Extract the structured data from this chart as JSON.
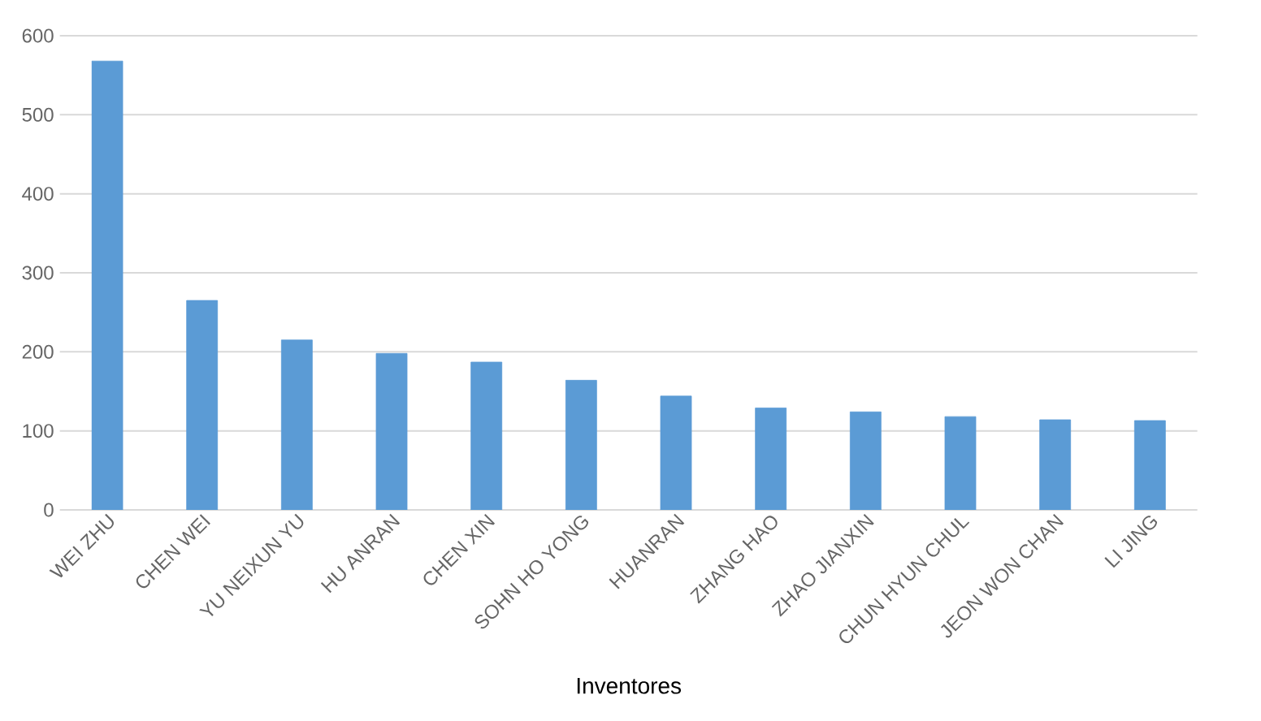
{
  "chart_data": {
    "type": "bar",
    "xlabel": "Inventores",
    "categories": [
      "WEI ZHU",
      "CHEN WEI",
      "YU NEIXUN YU",
      "HU ANRAN",
      "CHEN XIN",
      "SOHN HO YONG",
      "HUANRAN",
      "ZHANG HAO",
      "ZHAO JIANXIN",
      "CHUN HYUN CHUL",
      "JEON WON CHAN",
      "LI JING"
    ],
    "values": [
      568,
      265,
      215,
      198,
      187,
      164,
      144,
      129,
      124,
      118,
      114,
      113
    ],
    "color": "#5b9bd5",
    "ylim": [
      0,
      600
    ],
    "yticks": [
      0,
      100,
      200,
      300,
      400,
      500,
      600
    ],
    "grid": "y"
  }
}
